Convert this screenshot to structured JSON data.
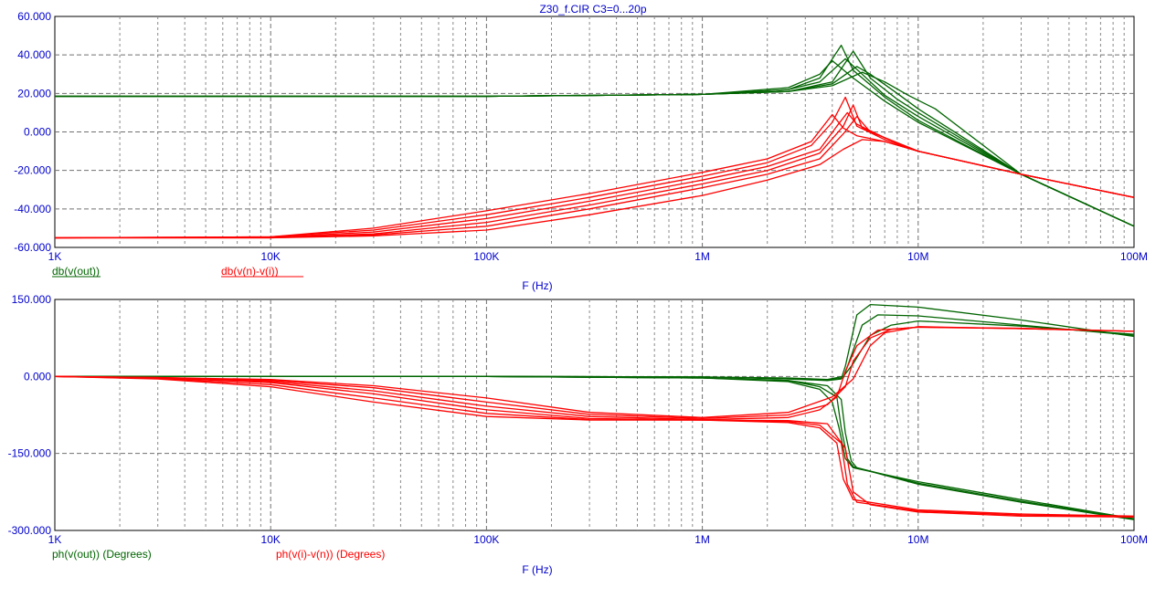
{
  "chart_data": [
    {
      "type": "line",
      "title": "Z30_f.CIR C3=0...20p",
      "xlabel": "F (Hz)",
      "xscale": "log",
      "xlim": [
        1000,
        100000000
      ],
      "ylim": [
        -60,
        60
      ],
      "grid": true,
      "x_tick_labels": [
        "1K",
        "10K",
        "100K",
        "1M",
        "10M",
        "100M"
      ],
      "y_tick_labels": [
        "60.000",
        "40.000",
        "20.000",
        "0.000",
        "-20.000",
        "-40.000",
        "-60.000"
      ],
      "legend": [
        {
          "label": "db(v(out))",
          "color": "#006400"
        },
        {
          "label": "db(v(n)-v(i))",
          "color": "#ff0000"
        }
      ],
      "series": [
        {
          "name": "db(v(out))",
          "color": "#006400",
          "family": [
            {
              "x": [
                1000,
                100000,
                1000000,
                2500000,
                3500000,
                4400000,
                5000000,
                7000000,
                10000000,
                30000000,
                100000000
              ],
              "y": [
                18.5,
                18.5,
                19.5,
                22,
                28,
                45,
                32,
                18,
                6,
                -22,
                -49
              ]
            },
            {
              "x": [
                1000,
                100000,
                1000000,
                2500000,
                3500000,
                4000000,
                5000000,
                7000000,
                10000000,
                30000000,
                100000000
              ],
              "y": [
                18.5,
                18.5,
                19.5,
                23,
                30,
                37,
                28,
                16,
                5,
                -22,
                -49
              ]
            },
            {
              "x": [
                1000,
                100000,
                1000000,
                2500000,
                3500000,
                4600000,
                5500000,
                7000000,
                10000000,
                30000000,
                100000000
              ],
              "y": [
                18.5,
                18.5,
                19.5,
                22,
                26,
                38,
                30,
                19,
                8,
                -22,
                -49
              ]
            },
            {
              "x": [
                1000,
                100000,
                1000000,
                2500000,
                4000000,
                5000000,
                6000000,
                8000000,
                10000000,
                30000000,
                100000000
              ],
              "y": [
                18.5,
                18.5,
                19.5,
                21,
                26,
                42,
                28,
                17,
                10,
                -22,
                -49
              ]
            },
            {
              "x": [
                1000,
                100000,
                1000000,
                2500000,
                4000000,
                5200000,
                6000000,
                8000000,
                10000000,
                30000000,
                100000000
              ],
              "y": [
                18.5,
                18.5,
                19.5,
                21,
                25,
                34,
                30,
                20,
                12,
                -22,
                -49
              ]
            },
            {
              "x": [
                1000,
                100000,
                1000000,
                2500000,
                4000000,
                5500000,
                7000000,
                9000000,
                12000000,
                30000000,
                100000000
              ],
              "y": [
                18.5,
                18.5,
                19.5,
                21,
                24,
                31,
                26,
                19,
                12,
                -22,
                -49
              ]
            }
          ]
        },
        {
          "name": "db(v(n)-v(i))",
          "color": "#ff0000",
          "family": [
            {
              "x": [
                1000,
                10000,
                30000,
                100000,
                300000,
                1000000,
                2000000,
                3200000,
                4000000,
                4500000,
                5200000,
                7000000,
                10000000,
                30000000,
                100000000
              ],
              "y": [
                -55,
                -54.5,
                -50,
                -41,
                -32,
                -21,
                -14,
                -5,
                9,
                2,
                -2,
                -5,
                -10,
                -22,
                -34
              ]
            },
            {
              "x": [
                1000,
                10000,
                30000,
                100000,
                300000,
                1000000,
                2000000,
                3200000,
                4000000,
                4600000,
                5200000,
                7000000,
                10000000,
                30000000,
                100000000
              ],
              "y": [
                -55,
                -54.5,
                -51,
                -43,
                -34,
                -23,
                -16,
                -7,
                5,
                18,
                3,
                -4,
                -10,
                -22,
                -34
              ]
            },
            {
              "x": [
                1000,
                10000,
                30000,
                100000,
                300000,
                1000000,
                2000000,
                3500000,
                4200000,
                4700000,
                5200000,
                7000000,
                10000000,
                30000000,
                100000000
              ],
              "y": [
                -55,
                -54.8,
                -52,
                -45,
                -36,
                -25,
                -18,
                -9,
                3,
                10,
                4,
                -3,
                -10,
                -22,
                -34
              ]
            },
            {
              "x": [
                1000,
                10000,
                30000,
                100000,
                300000,
                1000000,
                2000000,
                3500000,
                4500000,
                5000000,
                5500000,
                7000000,
                10000000,
                30000000,
                100000000
              ],
              "y": [
                -55,
                -54.8,
                -53,
                -47,
                -38,
                -27,
                -20,
                -11,
                3,
                14,
                2,
                -3,
                -10,
                -22,
                -34
              ]
            },
            {
              "x": [
                1000,
                10000,
                30000,
                100000,
                300000,
                1000000,
                2000000,
                3500000,
                4500000,
                5200000,
                6000000,
                7000000,
                10000000,
                30000000,
                100000000
              ],
              "y": [
                -55,
                -55,
                -53.5,
                -49,
                -40,
                -29,
                -22,
                -14,
                -1,
                8,
                0,
                -3,
                -10,
                -22,
                -34
              ]
            },
            {
              "x": [
                1000,
                10000,
                30000,
                100000,
                300000,
                1000000,
                2000000,
                3500000,
                4500000,
                5500000,
                7000000,
                10000000,
                30000000,
                100000000
              ],
              "y": [
                -55,
                -55,
                -54,
                -51,
                -43,
                -33,
                -25,
                -17,
                -9,
                -4,
                -5,
                -10,
                -22,
                -34
              ]
            }
          ]
        }
      ]
    },
    {
      "type": "line",
      "xlabel": "F (Hz)",
      "xscale": "log",
      "xlim": [
        1000,
        100000000
      ],
      "ylim": [
        -300,
        150
      ],
      "grid": true,
      "x_tick_labels": [
        "1K",
        "10K",
        "100K",
        "1M",
        "10M",
        "100M"
      ],
      "y_tick_labels": [
        "150.000",
        "0.000",
        "-150.000",
        "-300.000"
      ],
      "legend": [
        {
          "label": "ph(v(out)) (Degrees)",
          "color": "#006400"
        },
        {
          "label": "ph(v(i)-v(n)) (Degrees)",
          "color": "#ff0000"
        }
      ],
      "series": [
        {
          "name": "ph(v(out)) (Degrees)",
          "color": "#006400",
          "family": [
            {
              "x": [
                1000,
                100000,
                1000000,
                2500000,
                3500000,
                4000000,
                4300000,
                4600000,
                5000000,
                10000000,
                30000000,
                100000000
              ],
              "y": [
                0,
                0,
                -3,
                -10,
                -25,
                -50,
                -100,
                -160,
                -178,
                -205,
                -240,
                -277
              ]
            },
            {
              "x": [
                1000,
                100000,
                1000000,
                2500000,
                3500000,
                4200000,
                4400000,
                4700000,
                5000000,
                10000000,
                30000000,
                100000000
              ],
              "y": [
                0,
                0,
                -3,
                -8,
                -20,
                -40,
                -100,
                -160,
                -176,
                -208,
                -243,
                -278
              ]
            },
            {
              "x": [
                1000,
                100000,
                1000000,
                2500000,
                3800000,
                4400000,
                4600000,
                4900000,
                5200000,
                10000000,
                30000000,
                100000000
              ],
              "y": [
                0,
                0,
                -3,
                -8,
                -18,
                -45,
                -110,
                -165,
                -178,
                -210,
                -245,
                -279
              ]
            },
            {
              "x": [
                1000,
                100000,
                1000000,
                2500000,
                3800000,
                4400000,
                4600000,
                5200000,
                6000000,
                10000000,
                30000000,
                100000000
              ],
              "y": [
                0,
                0,
                -1,
                -5,
                -8,
                -5,
                20,
                120,
                140,
                135,
                110,
                78
              ]
            },
            {
              "x": [
                1000,
                100000,
                1000000,
                2500000,
                3800000,
                4500000,
                4800000,
                5500000,
                6500000,
                10000000,
                30000000,
                100000000
              ],
              "y": [
                0,
                0,
                -1,
                -4,
                -7,
                -3,
                30,
                100,
                120,
                118,
                100,
                80
              ]
            },
            {
              "x": [
                1000,
                100000,
                1000000,
                2500000,
                3800000,
                4500000,
                5000000,
                6000000,
                7500000,
                10000000,
                30000000,
                100000000
              ],
              "y": [
                0,
                0,
                -1,
                -3,
                -6,
                0,
                25,
                80,
                100,
                108,
                98,
                82
              ]
            }
          ]
        },
        {
          "name": "ph(v(i)-v(n)) (Degrees)",
          "color": "#ff0000",
          "family": [
            {
              "x": [
                1000,
                3000,
                10000,
                30000,
                100000,
                300000,
                1000000,
                2500000,
                3500000,
                4200000,
                4500000,
                5000000,
                10000000,
                30000000,
                100000000
              ],
              "y": [
                0,
                -5,
                -20,
                -50,
                -78,
                -85,
                -85,
                -90,
                -100,
                -130,
                -200,
                -240,
                -260,
                -268,
                -272
              ]
            },
            {
              "x": [
                1000,
                3000,
                10000,
                30000,
                100000,
                300000,
                1000000,
                2500000,
                3500000,
                4400000,
                4700000,
                5200000,
                10000000,
                30000000,
                100000000
              ],
              "y": [
                0,
                -4,
                -16,
                -42,
                -72,
                -84,
                -85,
                -88,
                -95,
                -130,
                -210,
                -245,
                -262,
                -270,
                -273
              ]
            },
            {
              "x": [
                1000,
                3000,
                10000,
                30000,
                100000,
                300000,
                1000000,
                2500000,
                3800000,
                4600000,
                5000000,
                6000000,
                10000000,
                30000000,
                100000000
              ],
              "y": [
                0,
                -3,
                -12,
                -34,
                -65,
                -82,
                -85,
                -86,
                -92,
                -140,
                -225,
                -250,
                -264,
                -272,
                -274
              ]
            },
            {
              "x": [
                1000,
                3000,
                10000,
                30000,
                100000,
                300000,
                1000000,
                2500000,
                3500000,
                4200000,
                4600000,
                5200000,
                6500000,
                10000000,
                30000000,
                100000000
              ],
              "y": [
                0,
                -3,
                -10,
                -28,
                -58,
                -78,
                -84,
                -80,
                -65,
                -40,
                10,
                60,
                90,
                96,
                94,
                88
              ]
            },
            {
              "x": [
                1000,
                3000,
                10000,
                30000,
                100000,
                300000,
                1000000,
                2500000,
                3800000,
                4600000,
                5000000,
                6000000,
                7500000,
                10000000,
                30000000,
                100000000
              ],
              "y": [
                0,
                -2,
                -8,
                -22,
                -50,
                -74,
                -82,
                -75,
                -55,
                -20,
                30,
                75,
                92,
                96,
                93,
                88
              ]
            },
            {
              "x": [
                1000,
                3000,
                10000,
                30000,
                100000,
                300000,
                1000000,
                2500000,
                4000000,
                5000000,
                6000000,
                7000000,
                10000000,
                30000000,
                100000000
              ],
              "y": [
                0,
                -2,
                -6,
                -18,
                -42,
                -70,
                -80,
                -70,
                -40,
                -5,
                60,
                85,
                97,
                93,
                88
              ]
            }
          ]
        }
      ]
    }
  ]
}
